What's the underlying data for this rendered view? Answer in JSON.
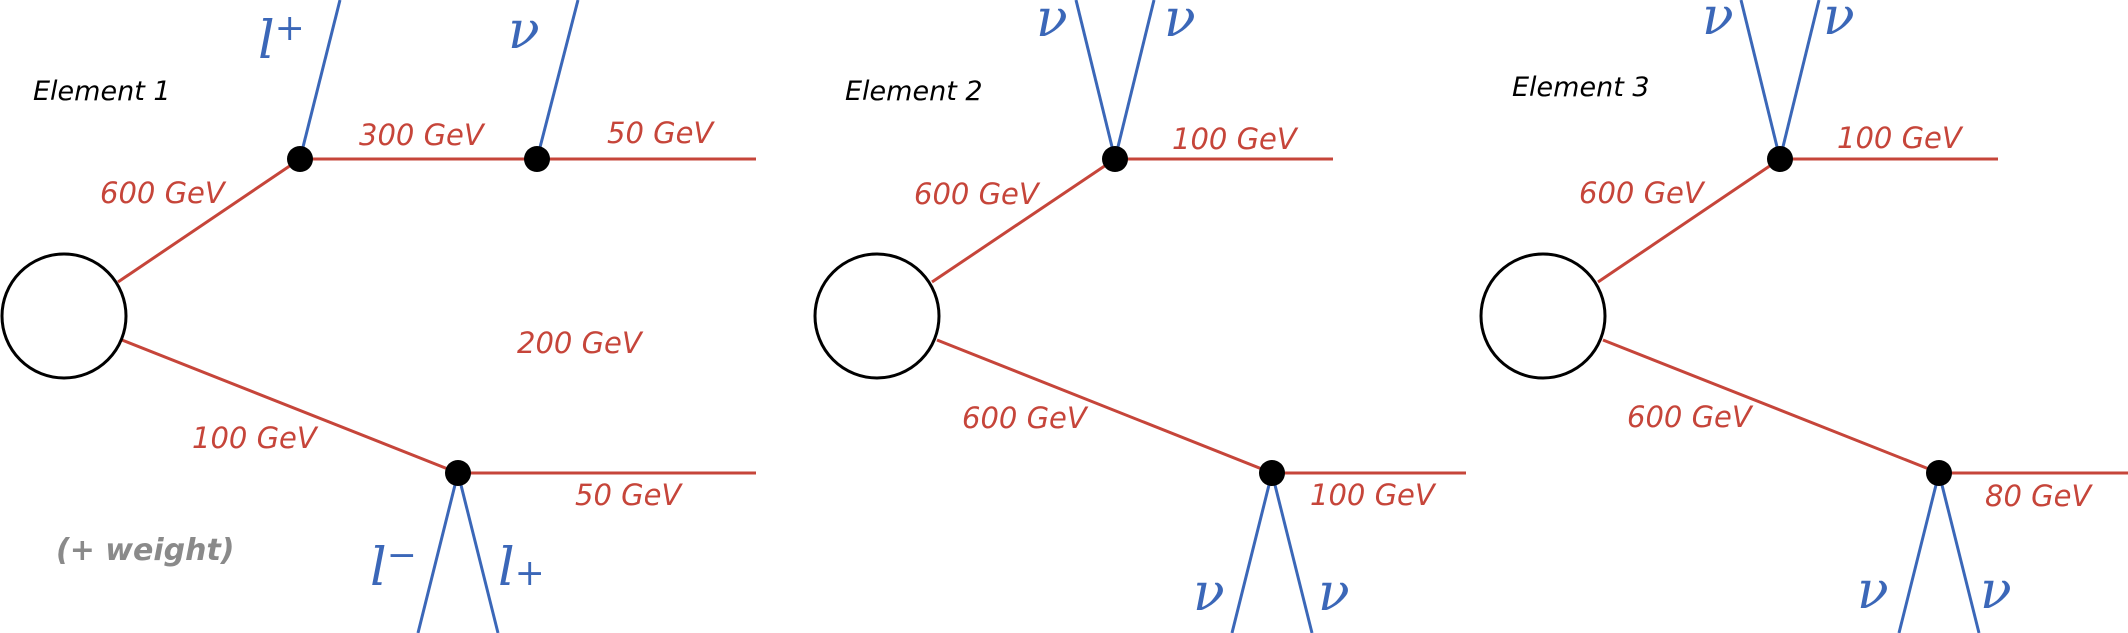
{
  "colors": {
    "sm_line": "#c6453a",
    "mass_text": "#c6453a",
    "particle": "#3b67b8",
    "vertex": "#000000",
    "weight_text": "#8a8a8a"
  },
  "elements": [
    {
      "title": "Element 1",
      "branch_top": {
        "mother_mass": "600 GeV",
        "intermediate_mass": "300 GeV",
        "lsp_mass": "50 GeV",
        "particle_1": {
          "symbol": "l",
          "sign": "+"
        },
        "particle_2": {
          "symbol": "ν",
          "sign": ""
        }
      },
      "branch_bottom": {
        "mother_mass": "100 GeV",
        "lsp_mass": "50 GeV",
        "particle_1": {
          "symbol": "l",
          "sign": "−"
        },
        "particle_2": {
          "symbol": "l",
          "sign": "+"
        }
      },
      "floating_label": "200 GeV",
      "weight_label": "(+ weight)"
    },
    {
      "title": "Element 2",
      "branch_top": {
        "mother_mass": "600 GeV",
        "lsp_mass": "100 GeV",
        "particle_1": {
          "symbol": "ν",
          "sign": ""
        },
        "particle_2": {
          "symbol": "ν",
          "sign": ""
        }
      },
      "branch_bottom": {
        "mother_mass": "600 GeV",
        "lsp_mass": "100 GeV",
        "particle_1": {
          "symbol": "ν",
          "sign": ""
        },
        "particle_2": {
          "symbol": "ν",
          "sign": ""
        }
      }
    },
    {
      "title": "Element 3",
      "branch_top": {
        "mother_mass": "600 GeV",
        "lsp_mass": "100 GeV",
        "particle_1": {
          "symbol": "ν",
          "sign": ""
        },
        "particle_2": {
          "symbol": "ν",
          "sign": ""
        }
      },
      "branch_bottom": {
        "mother_mass": "600 GeV",
        "lsp_mass": "80 GeV",
        "particle_1": {
          "symbol": "ν",
          "sign": ""
        },
        "particle_2": {
          "symbol": "ν",
          "sign": ""
        }
      }
    }
  ]
}
